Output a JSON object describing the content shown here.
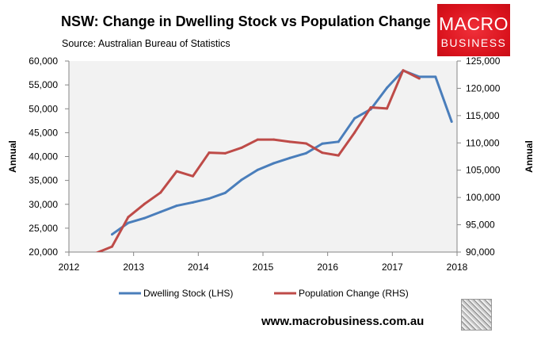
{
  "chart_data": {
    "type": "line",
    "title": "NSW: Change in Dwelling Stock vs Population Change",
    "subtitle": "Source: Australian Bureau of Statistics",
    "xlabel": "",
    "ylabel": "Annual",
    "y2label": "Annual",
    "xlim": [
      "2012-01",
      "2018-01"
    ],
    "ylim": [
      20000,
      60000
    ],
    "y2lim": [
      90000,
      125000
    ],
    "x_ticks": [
      "2012",
      "2013",
      "2014",
      "2015",
      "2016",
      "2017",
      "2018"
    ],
    "y_ticks": [
      "20,000",
      "25,000",
      "30,000",
      "35,000",
      "40,000",
      "45,000",
      "50,000",
      "55,000",
      "60,000"
    ],
    "y2_ticks": [
      "90,000",
      "95,000",
      "100,000",
      "105,000",
      "110,000",
      "115,000",
      "120,000",
      "125,000"
    ],
    "grid": false,
    "legend": "bottom",
    "series": [
      {
        "name": "Dwelling Stock (LHS)",
        "axis": "left",
        "color": "#4a7ebb",
        "x": [
          "2012-09",
          "2012-12",
          "2013-03",
          "2013-06",
          "2013-09",
          "2013-12",
          "2014-03",
          "2014-06",
          "2014-09",
          "2014-12",
          "2015-03",
          "2015-06",
          "2015-09",
          "2015-12",
          "2016-03",
          "2016-06",
          "2016-09",
          "2016-12",
          "2017-03",
          "2017-06",
          "2017-09",
          "2017-12"
        ],
        "values": [
          23700,
          26100,
          27100,
          28400,
          29700,
          30400,
          31200,
          32400,
          35100,
          37200,
          38600,
          39700,
          40700,
          42700,
          43100,
          48000,
          49900,
          54400,
          58000,
          56700,
          56700,
          47300
        ]
      },
      {
        "name": "Population Change (RHS)",
        "axis": "right",
        "color": "#be4b48",
        "x": [
          "2012-06",
          "2012-09",
          "2012-12",
          "2013-03",
          "2013-06",
          "2013-09",
          "2013-12",
          "2014-03",
          "2014-06",
          "2014-09",
          "2014-12",
          "2015-03",
          "2015-06",
          "2015-09",
          "2015-12",
          "2016-03",
          "2016-06",
          "2016-09",
          "2016-12",
          "2017-03",
          "2017-06"
        ],
        "values": [
          89800,
          91000,
          96400,
          98800,
          100900,
          104800,
          103900,
          108200,
          108100,
          109100,
          110600,
          110600,
          110200,
          109900,
          108200,
          107700,
          111900,
          116500,
          116300,
          123300,
          121800
        ]
      }
    ]
  },
  "logo": {
    "line1": "MACRO",
    "line2": "BUSINESS"
  },
  "footer": {
    "url": "www.macrobusiness.com.au"
  }
}
